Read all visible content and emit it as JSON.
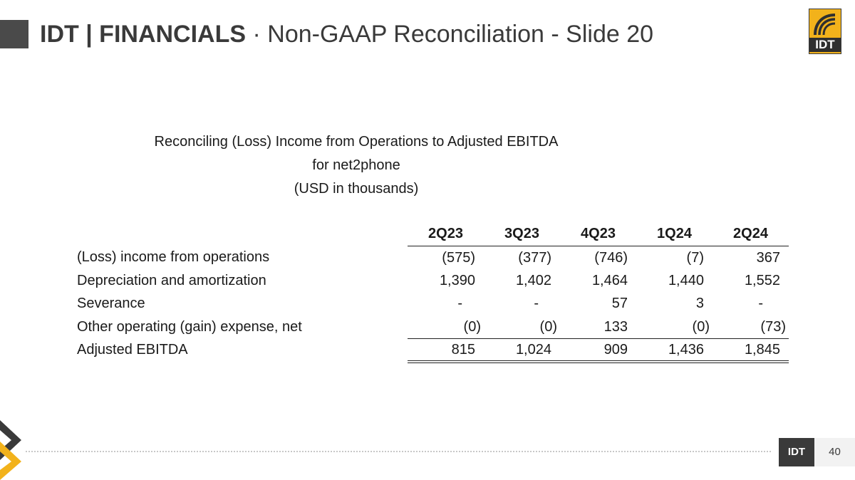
{
  "header": {
    "title_bold": "IDT | FINANCIALS",
    "title_separator": " · ",
    "title_light": "Non-GAAP Reconciliation - Slide 20",
    "logo_text": "IDT"
  },
  "heading": {
    "line1": "Reconciling (Loss) Income from Operations to Adjusted EBITDA",
    "line2": "for net2phone",
    "line3": "(USD in thousands)"
  },
  "table": {
    "columns": [
      "2Q23",
      "3Q23",
      "4Q23",
      "1Q24",
      "2Q24"
    ],
    "rows": [
      {
        "label": "(Loss) income from operations",
        "values": [
          "(575)",
          "(377)",
          "(746)",
          "(7)",
          "367"
        ]
      },
      {
        "label": "Depreciation and amortization",
        "values": [
          "1,390",
          "1,402",
          "1,464",
          "1,440",
          "1,552"
        ]
      },
      {
        "label": "Severance",
        "values": [
          "-",
          "-",
          "57",
          "3",
          "-"
        ]
      },
      {
        "label": "Other operating (gain) expense, net",
        "values": [
          "(0)",
          "(0)",
          "133",
          "(0)",
          "(73)"
        ]
      },
      {
        "label": "Adjusted EBITDA",
        "values": [
          "815",
          "1,024",
          "909",
          "1,436",
          "1,845"
        ]
      }
    ]
  },
  "footer": {
    "tag": "IDT",
    "page_number": "40"
  },
  "colors": {
    "accent": "#f2b21b",
    "dark": "#3a3a3a"
  }
}
